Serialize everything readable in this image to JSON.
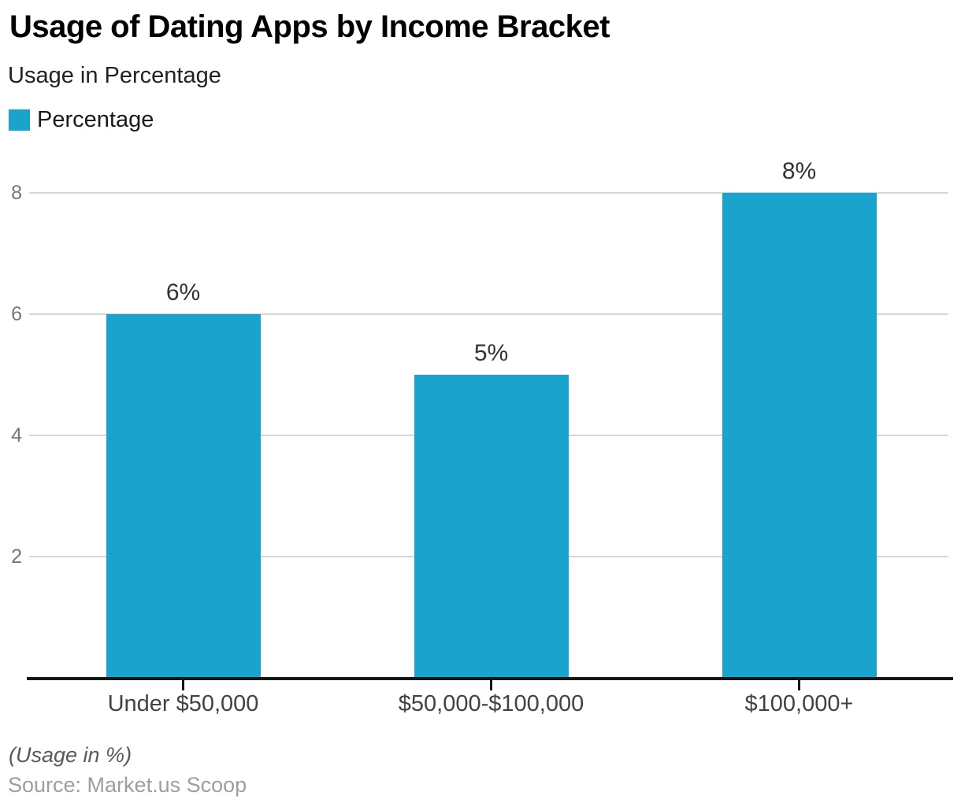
{
  "header": {
    "title": "Usage of Dating Apps by Income Bracket",
    "subtitle": "Usage in Percentage"
  },
  "legend": {
    "label": "Percentage",
    "swatch_color": "#1AA3CC"
  },
  "chart_data": {
    "type": "bar",
    "title": "Usage of Dating Apps by Income Bracket",
    "subtitle": "Usage in Percentage",
    "categories": [
      "Under $50,000",
      "$50,000-$100,000",
      "$100,000+"
    ],
    "series": [
      {
        "name": "Percentage",
        "values": [
          6,
          5,
          8
        ]
      }
    ],
    "value_labels": [
      "6%",
      "5%",
      "8%"
    ],
    "xlabel": "",
    "ylabel": "Usage in Percentage",
    "yticks": [
      2,
      4,
      6,
      8
    ],
    "ylim": [
      0,
      8.6
    ],
    "grid": true,
    "legend_position": "top-left",
    "bar_color": "#1AA3CC"
  },
  "colors": {
    "bar": "#1AA3CC",
    "gridline": "#d7d7d7",
    "axis": "#161616",
    "y_tick_label": "#757575",
    "x_tick_label": "#424242",
    "value_label": "#333333"
  },
  "footer": {
    "note": "(Usage in %)",
    "source": "Source: Market.us Scoop"
  }
}
